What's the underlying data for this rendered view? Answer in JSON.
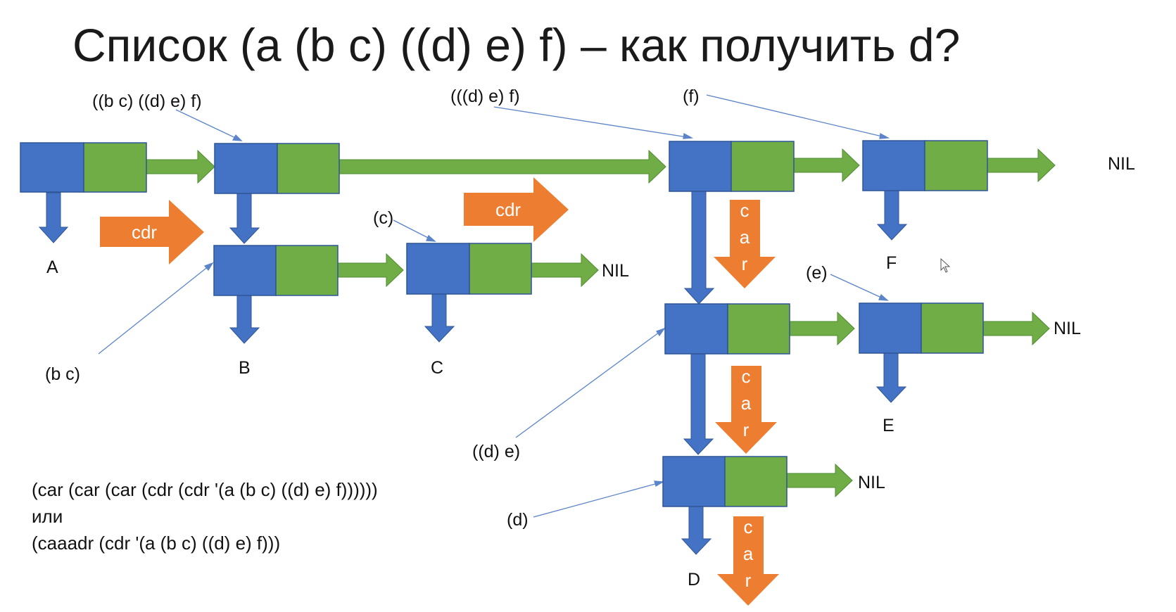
{
  "colors": {
    "car_cell": "#4472c4",
    "cdr_cell": "#70ad47",
    "operation_arrow": "#ed7d31",
    "pointer_line": "#5b84c9",
    "text": "#111111"
  },
  "title": "Список (a (b c) ((d) e) f) – как получить d?",
  "atoms": [
    "A",
    "B",
    "C",
    "D",
    "E",
    "F"
  ],
  "nil_labels": [
    "NIL",
    "NIL",
    "NIL",
    "NIL"
  ],
  "sublist_labels": [
    "((b c) ((d) e) f)",
    "(((d) e) f)",
    "(f)",
    "(c)",
    "(e)",
    "(b c)",
    "((d) e)",
    "(d)"
  ],
  "operation_arrows": [
    "cdr",
    "cdr",
    "car",
    "car",
    "car"
  ],
  "code": {
    "line1": "(car (car (car (cdr (cdr '(a (b c) ((d) e) f))))))",
    "line2": "или",
    "line3": "(caaadr (cdr '(a (b c) ((d) e) f)))"
  }
}
